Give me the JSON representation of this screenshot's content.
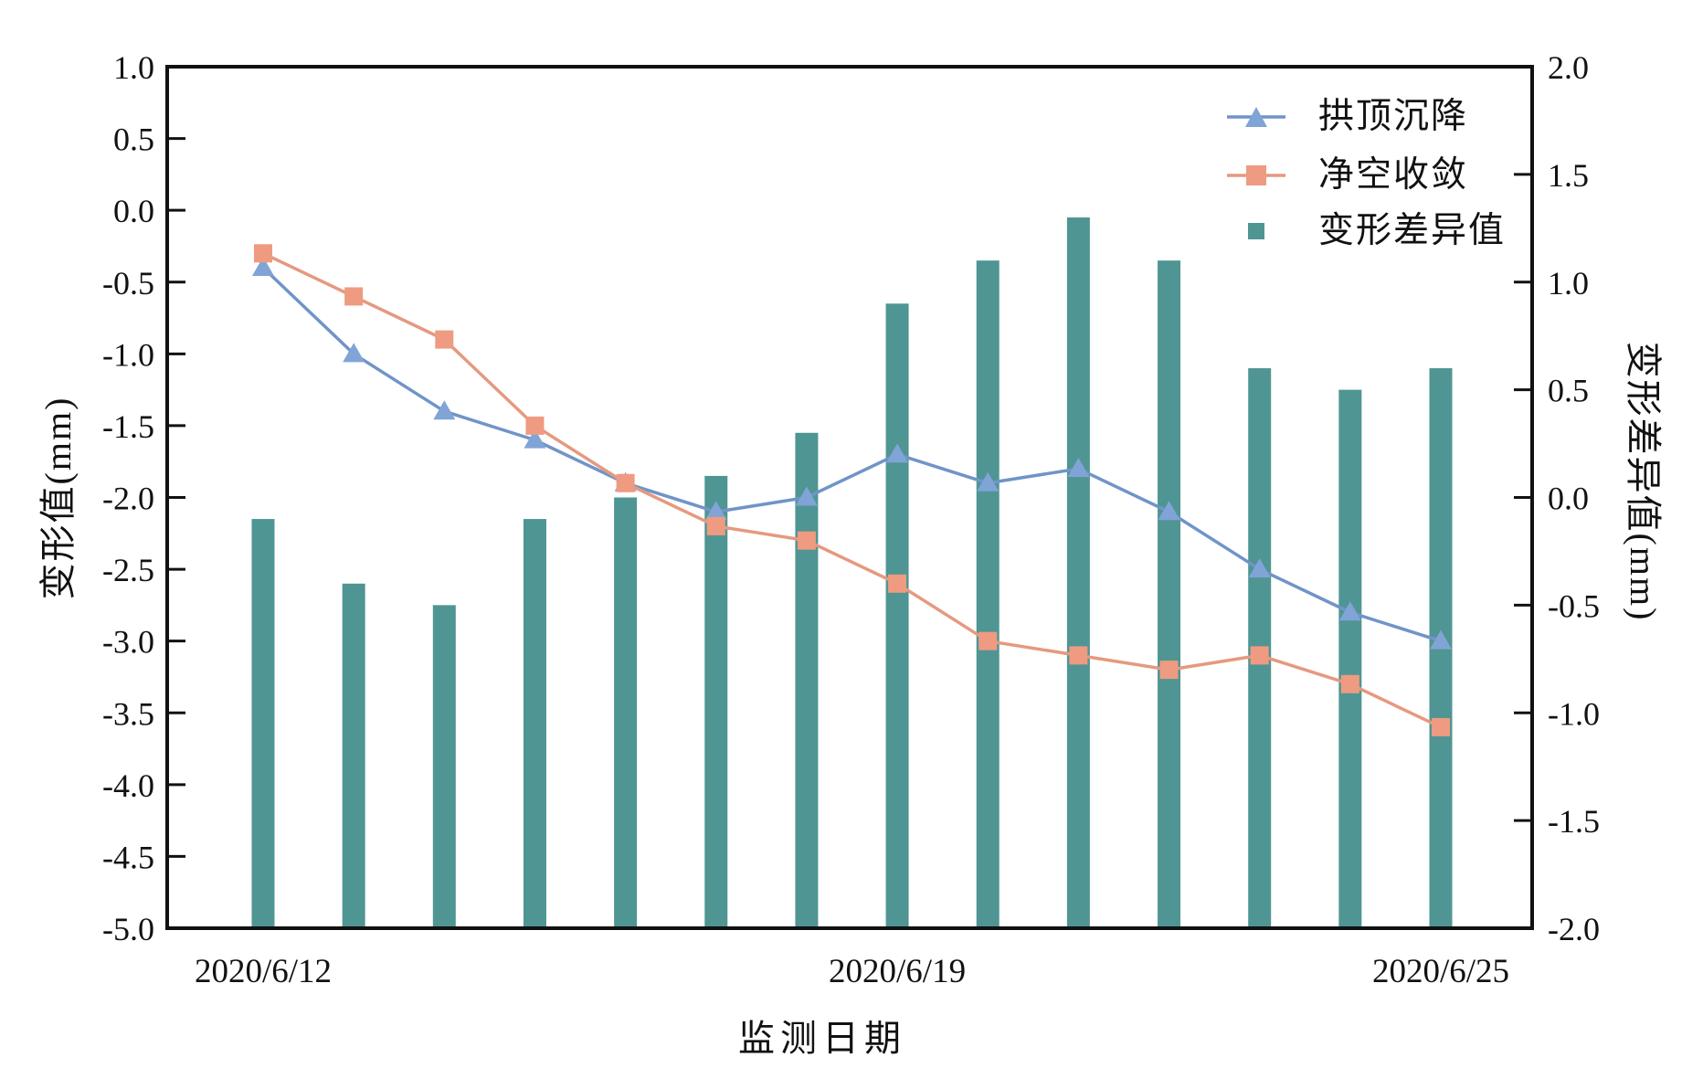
{
  "chart_data": {
    "type": "combo-line-bar",
    "n_points": 14,
    "background": "#ffffff",
    "axis_color": "#111111",
    "x_axis_label": "监测日期",
    "x_ticks": {
      "indices": [
        0,
        7,
        13
      ],
      "labels": [
        "2020/6/12",
        "2020/6/19",
        "2020/6/25"
      ]
    },
    "left_axis": {
      "label": "变形值(mm)",
      "min": -5.0,
      "max": 1.0,
      "step": 0.5
    },
    "right_axis": {
      "label": "变形差异值(mm)",
      "min": -2.0,
      "max": 2.0,
      "step": 0.5
    },
    "legend_position": "top-right-inside",
    "grid": false,
    "series": [
      {
        "name": "拱顶沉降",
        "type": "line",
        "axis": "left",
        "marker": "triangle",
        "line_color": "#7094c8",
        "marker_color": "#80a4d6",
        "values": [
          -0.4,
          -1.0,
          -1.4,
          -1.6,
          -1.9,
          -2.1,
          -2.0,
          -1.7,
          -1.9,
          -1.8,
          -2.1,
          -2.5,
          -2.8,
          -3.0
        ]
      },
      {
        "name": "净空收敛",
        "type": "line",
        "axis": "left",
        "marker": "square",
        "line_color": "#e5997f",
        "marker_color": "#ee9b81",
        "values": [
          -0.3,
          -0.6,
          -0.9,
          -1.5,
          -1.9,
          -2.2,
          -2.3,
          -2.6,
          -3.0,
          -3.1,
          -3.2,
          -3.1,
          -3.3,
          -3.6
        ]
      },
      {
        "name": "变形差异值",
        "type": "bar",
        "axis": "right",
        "color": "#4f9593",
        "values": [
          -0.1,
          -0.4,
          -0.5,
          -0.1,
          0.0,
          0.1,
          0.3,
          0.9,
          1.1,
          1.3,
          1.1,
          0.6,
          0.5,
          0.6
        ]
      }
    ]
  }
}
